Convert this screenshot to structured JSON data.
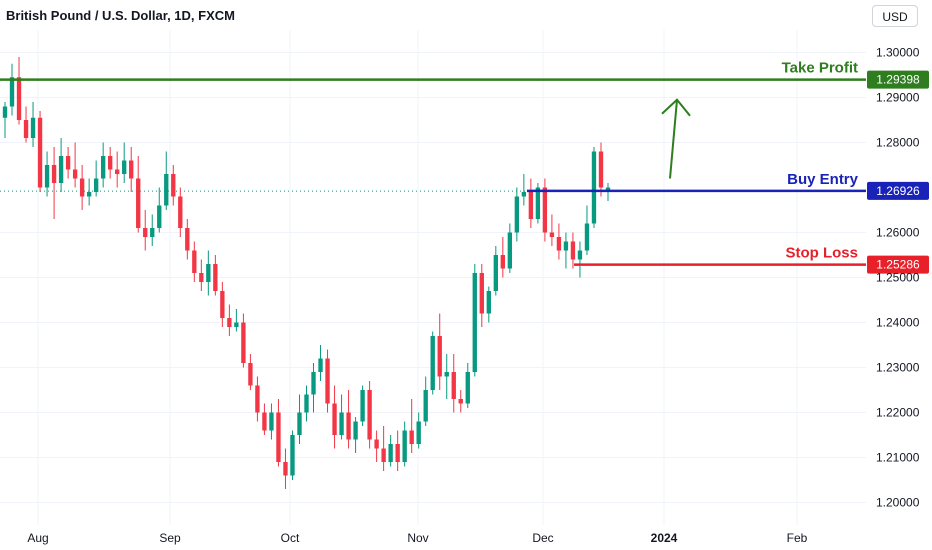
{
  "header": {
    "title": "British Pound / U.S. Dollar, 1D, FXCM",
    "currency": "USD"
  },
  "chart_data": {
    "type": "candlestick",
    "ylim": [
      1.195,
      1.305
    ],
    "y_ticks": [
      "1.30000",
      "1.29000",
      "1.28000",
      "1.26000",
      "1.25000",
      "1.24000",
      "1.23000",
      "1.22000",
      "1.21000",
      "1.20000"
    ],
    "x_ticks": [
      {
        "label": "Aug",
        "bold": false
      },
      {
        "label": "Sep",
        "bold": false
      },
      {
        "label": "Oct",
        "bold": false
      },
      {
        "label": "Nov",
        "bold": false
      },
      {
        "label": "Dec",
        "bold": false
      },
      {
        "label": "2024",
        "bold": true
      },
      {
        "label": "Feb",
        "bold": false
      }
    ],
    "colors": {
      "up": "#089981",
      "down": "#f23645",
      "grid": "#f0f3fa"
    },
    "current_price": 1.2692,
    "levels": [
      {
        "name": "Take Profit",
        "value": 1.29398,
        "badge": "1.29398",
        "color": "#2e7d1e"
      },
      {
        "name": "Buy Entry",
        "value": 1.26926,
        "badge": "1.26926",
        "color": "#1a23b8"
      },
      {
        "name": "Stop Loss",
        "value": 1.25286,
        "badge": "1.25286",
        "color": "#e8202a"
      }
    ],
    "arrow": {
      "from": 1.272,
      "to": 1.2895,
      "color": "#2e7d1e"
    },
    "candles": [
      [
        1.2855,
        1.289,
        1.281,
        1.288
      ],
      [
        1.288,
        1.2975,
        1.286,
        1.2945
      ],
      [
        1.2945,
        1.299,
        1.284,
        1.285
      ],
      [
        1.285,
        1.288,
        1.28,
        1.281
      ],
      [
        1.281,
        1.289,
        1.279,
        1.2855
      ],
      [
        1.2855,
        1.287,
        1.269,
        1.27
      ],
      [
        1.27,
        1.278,
        1.268,
        1.275
      ],
      [
        1.275,
        1.279,
        1.263,
        1.271
      ],
      [
        1.271,
        1.281,
        1.269,
        1.277
      ],
      [
        1.277,
        1.279,
        1.272,
        1.274
      ],
      [
        1.274,
        1.28,
        1.27,
        1.272
      ],
      [
        1.272,
        1.275,
        1.265,
        1.268
      ],
      [
        1.268,
        1.272,
        1.266,
        1.269
      ],
      [
        1.269,
        1.276,
        1.268,
        1.272
      ],
      [
        1.272,
        1.28,
        1.27,
        1.277
      ],
      [
        1.277,
        1.279,
        1.272,
        1.274
      ],
      [
        1.274,
        1.278,
        1.27,
        1.273
      ],
      [
        1.273,
        1.28,
        1.271,
        1.276
      ],
      [
        1.276,
        1.279,
        1.269,
        1.272
      ],
      [
        1.272,
        1.277,
        1.26,
        1.261
      ],
      [
        1.261,
        1.265,
        1.256,
        1.259
      ],
      [
        1.259,
        1.264,
        1.257,
        1.261
      ],
      [
        1.261,
        1.27,
        1.26,
        1.266
      ],
      [
        1.266,
        1.278,
        1.265,
        1.273
      ],
      [
        1.273,
        1.275,
        1.266,
        1.268
      ],
      [
        1.268,
        1.27,
        1.259,
        1.261
      ],
      [
        1.261,
        1.263,
        1.254,
        1.256
      ],
      [
        1.256,
        1.258,
        1.249,
        1.251
      ],
      [
        1.251,
        1.254,
        1.247,
        1.249
      ],
      [
        1.249,
        1.256,
        1.246,
        1.253
      ],
      [
        1.253,
        1.255,
        1.246,
        1.247
      ],
      [
        1.247,
        1.249,
        1.239,
        1.241
      ],
      [
        1.241,
        1.244,
        1.237,
        1.239
      ],
      [
        1.239,
        1.243,
        1.238,
        1.24
      ],
      [
        1.24,
        1.242,
        1.23,
        1.231
      ],
      [
        1.231,
        1.233,
        1.225,
        1.226
      ],
      [
        1.226,
        1.228,
        1.218,
        1.22
      ],
      [
        1.22,
        1.222,
        1.215,
        1.216
      ],
      [
        1.216,
        1.222,
        1.214,
        1.22
      ],
      [
        1.22,
        1.223,
        1.208,
        1.209
      ],
      [
        1.209,
        1.212,
        1.203,
        1.206
      ],
      [
        1.206,
        1.216,
        1.205,
        1.215
      ],
      [
        1.215,
        1.224,
        1.213,
        1.22
      ],
      [
        1.22,
        1.226,
        1.218,
        1.224
      ],
      [
        1.224,
        1.231,
        1.22,
        1.229
      ],
      [
        1.229,
        1.235,
        1.227,
        1.232
      ],
      [
        1.232,
        1.234,
        1.22,
        1.222
      ],
      [
        1.222,
        1.226,
        1.212,
        1.215
      ],
      [
        1.215,
        1.224,
        1.214,
        1.22
      ],
      [
        1.22,
        1.225,
        1.212,
        1.214
      ],
      [
        1.214,
        1.219,
        1.211,
        1.218
      ],
      [
        1.218,
        1.226,
        1.217,
        1.225
      ],
      [
        1.225,
        1.227,
        1.212,
        1.214
      ],
      [
        1.214,
        1.216,
        1.209,
        1.212
      ],
      [
        1.212,
        1.217,
        1.207,
        1.209
      ],
      [
        1.209,
        1.215,
        1.208,
        1.213
      ],
      [
        1.213,
        1.216,
        1.207,
        1.209
      ],
      [
        1.209,
        1.218,
        1.208,
        1.216
      ],
      [
        1.216,
        1.223,
        1.211,
        1.213
      ],
      [
        1.213,
        1.22,
        1.212,
        1.218
      ],
      [
        1.218,
        1.228,
        1.217,
        1.225
      ],
      [
        1.225,
        1.238,
        1.224,
        1.237
      ],
      [
        1.237,
        1.242,
        1.225,
        1.228
      ],
      [
        1.228,
        1.233,
        1.223,
        1.229
      ],
      [
        1.229,
        1.233,
        1.22,
        1.223
      ],
      [
        1.223,
        1.225,
        1.22,
        1.222
      ],
      [
        1.222,
        1.231,
        1.221,
        1.229
      ],
      [
        1.229,
        1.253,
        1.228,
        1.251
      ],
      [
        1.251,
        1.253,
        1.239,
        1.242
      ],
      [
        1.242,
        1.248,
        1.24,
        1.247
      ],
      [
        1.247,
        1.257,
        1.246,
        1.255
      ],
      [
        1.255,
        1.259,
        1.25,
        1.252
      ],
      [
        1.252,
        1.262,
        1.251,
        1.26
      ],
      [
        1.26,
        1.27,
        1.258,
        1.268
      ],
      [
        1.268,
        1.273,
        1.266,
        1.269
      ],
      [
        1.269,
        1.272,
        1.261,
        1.263
      ],
      [
        1.263,
        1.271,
        1.262,
        1.27
      ],
      [
        1.27,
        1.272,
        1.258,
        1.26
      ],
      [
        1.26,
        1.264,
        1.257,
        1.259
      ],
      [
        1.259,
        1.262,
        1.254,
        1.256
      ],
      [
        1.256,
        1.26,
        1.252,
        1.258
      ],
      [
        1.258,
        1.26,
        1.252,
        1.254
      ],
      [
        1.254,
        1.258,
        1.25,
        1.256
      ],
      [
        1.256,
        1.266,
        1.255,
        1.262
      ],
      [
        1.262,
        1.279,
        1.261,
        1.278
      ],
      [
        1.278,
        1.28,
        1.268,
        1.27
      ],
      [
        1.269,
        1.271,
        1.267,
        1.27
      ]
    ]
  }
}
